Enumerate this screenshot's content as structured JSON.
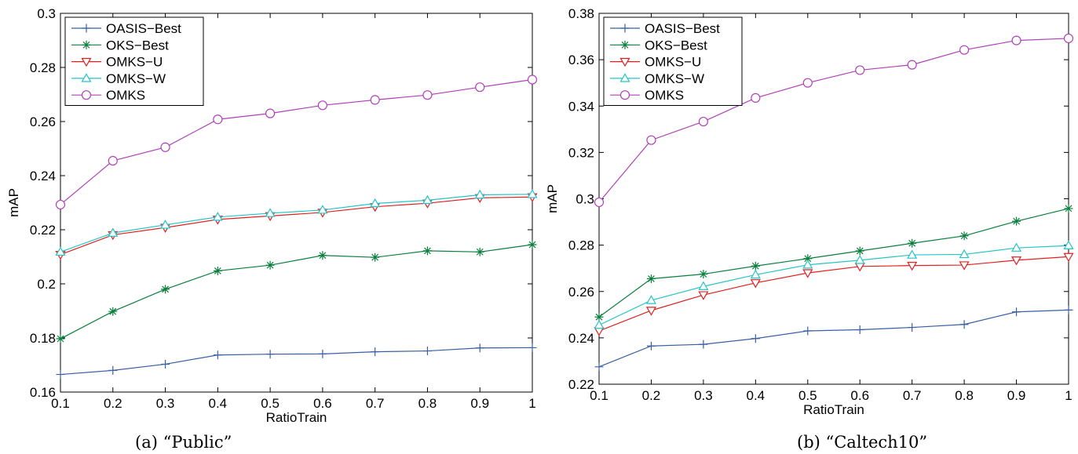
{
  "figure": {
    "captions": [
      "(a) “Public”",
      "(b) “Caltech10”"
    ]
  },
  "chart_data": [
    {
      "type": "line",
      "title": "",
      "caption": "(a) “Public”",
      "xlabel": "RatioTrain",
      "ylabel": "mAP",
      "xlim": [
        0.1,
        1
      ],
      "ylim": [
        0.16,
        0.3
      ],
      "x_ticks": [
        "0.1",
        "0.2",
        "0.3",
        "0.4",
        "0.5",
        "0.6",
        "0.7",
        "0.8",
        "0.9",
        "1"
      ],
      "y_ticks": [
        "0.16",
        "0.18",
        "0.2",
        "0.22",
        "0.24",
        "0.26",
        "0.28",
        "0.3"
      ],
      "x": [
        0.1,
        0.2,
        0.3,
        0.4,
        0.5,
        0.6,
        0.7,
        0.8,
        0.9,
        1.0
      ],
      "legend_position": "top-left",
      "grid": false,
      "series": [
        {
          "name": "OASIS−Best",
          "color": "#3a5fa6",
          "marker": "plus",
          "values": [
            0.1665,
            0.168,
            0.1703,
            0.1737,
            0.174,
            0.1741,
            0.1749,
            0.1752,
            0.1763,
            0.1764
          ]
        },
        {
          "name": "OKS−Best",
          "color": "#0a7f3e",
          "marker": "star",
          "values": [
            0.1797,
            0.1898,
            0.198,
            0.2048,
            0.2069,
            0.2105,
            0.2098,
            0.2122,
            0.2118,
            0.2145
          ]
        },
        {
          "name": "OMKS−U",
          "color": "#e02020",
          "marker": "triangle-down",
          "values": [
            0.2108,
            0.2181,
            0.2208,
            0.2238,
            0.2251,
            0.2264,
            0.2285,
            0.2298,
            0.2318,
            0.2321
          ]
        },
        {
          "name": "OMKS−W",
          "color": "#26c4c8",
          "marker": "triangle-up",
          "values": [
            0.2118,
            0.2188,
            0.2218,
            0.2247,
            0.2261,
            0.2273,
            0.2297,
            0.2309,
            0.2329,
            0.2331
          ]
        },
        {
          "name": "OMKS",
          "color": "#b040b8",
          "marker": "circle",
          "values": [
            0.2293,
            0.2455,
            0.2505,
            0.2608,
            0.263,
            0.266,
            0.268,
            0.2698,
            0.2727,
            0.2755
          ]
        }
      ]
    },
    {
      "type": "line",
      "title": "",
      "caption": "(b) “Caltech10”",
      "xlabel": "RatioTrain",
      "ylabel": "mAP",
      "xlim": [
        0.1,
        1
      ],
      "ylim": [
        0.22,
        0.38
      ],
      "x_ticks": [
        "0.1",
        "0.2",
        "0.3",
        "0.4",
        "0.5",
        "0.6",
        "0.7",
        "0.8",
        "0.9",
        "1"
      ],
      "y_ticks": [
        "0.22",
        "0.24",
        "0.26",
        "0.28",
        "0.3",
        "0.32",
        "0.34",
        "0.36",
        "0.38"
      ],
      "x": [
        0.1,
        0.2,
        0.3,
        0.4,
        0.5,
        0.6,
        0.7,
        0.8,
        0.9,
        1.0
      ],
      "legend_position": "top-left",
      "grid": false,
      "series": [
        {
          "name": "OASIS−Best",
          "color": "#3a5fa6",
          "marker": "plus",
          "values": [
            0.2275,
            0.2365,
            0.2372,
            0.2397,
            0.243,
            0.2435,
            0.2445,
            0.2458,
            0.2512,
            0.252
          ]
        },
        {
          "name": "OKS−Best",
          "color": "#0a7f3e",
          "marker": "star",
          "values": [
            0.249,
            0.2655,
            0.2675,
            0.271,
            0.2742,
            0.2775,
            0.2808,
            0.284,
            0.2903,
            0.2958
          ]
        },
        {
          "name": "OMKS−U",
          "color": "#e02020",
          "marker": "triangle-down",
          "values": [
            0.243,
            0.2518,
            0.2585,
            0.2637,
            0.268,
            0.2708,
            0.2712,
            0.2714,
            0.2735,
            0.275
          ]
        },
        {
          "name": "OMKS−W",
          "color": "#26c4c8",
          "marker": "triangle-up",
          "values": [
            0.2455,
            0.2562,
            0.2622,
            0.2672,
            0.2715,
            0.2735,
            0.2758,
            0.276,
            0.2788,
            0.2798
          ]
        },
        {
          "name": "OMKS",
          "color": "#b040b8",
          "marker": "circle",
          "values": [
            0.2985,
            0.3253,
            0.3333,
            0.3435,
            0.35,
            0.3555,
            0.3578,
            0.3642,
            0.3683,
            0.3692
          ]
        }
      ]
    }
  ]
}
